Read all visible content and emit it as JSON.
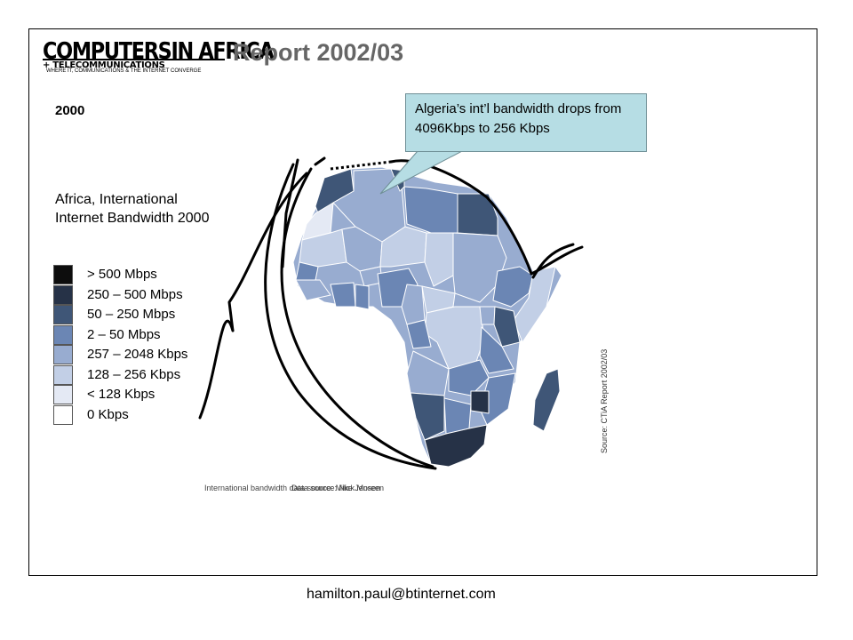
{
  "header": {
    "logo_main": "COMPUTERSIN AFRICA",
    "logo_sub": "+ TELECOMMUNICATIONS",
    "logo_tagline": "WHERE IT, COMMUNICATIONS & THE INTERNET CONVERGE",
    "title": "Report 2002/03"
  },
  "year": "2000",
  "map_title": "Africa, International Internet Bandwidth 2000",
  "legend": [
    {
      "label": "> 500 Mbps",
      "color": "#0d0d0d"
    },
    {
      "label": "250 – 500 Mbps",
      "color": "#263247"
    },
    {
      "label": "50 – 250 Mbps",
      "color": "#3f5677"
    },
    {
      "label": "2 – 50 Mbps",
      "color": "#6b86b4"
    },
    {
      "label": "257 – 2048 Kbps",
      "color": "#98acd0"
    },
    {
      "label": "128 – 256 Kbps",
      "color": "#c2cfe6"
    },
    {
      "label": "< 128 Kbps",
      "color": "#e4e9f4"
    },
    {
      "label": "0 Kbps",
      "color": "#ffffff"
    }
  ],
  "callout": "Algeria’s int’l bandwidth drops from 4096Kbps to 256 Kbps",
  "source_vertical": "Source: CTiA Report 2002/03",
  "source_bottom_1": "International bandwidth data source: Mike Jensen",
  "source_bottom_2": "Data source: Nick Moreen",
  "footer_email": "hamilton.paul@btinternet.com"
}
